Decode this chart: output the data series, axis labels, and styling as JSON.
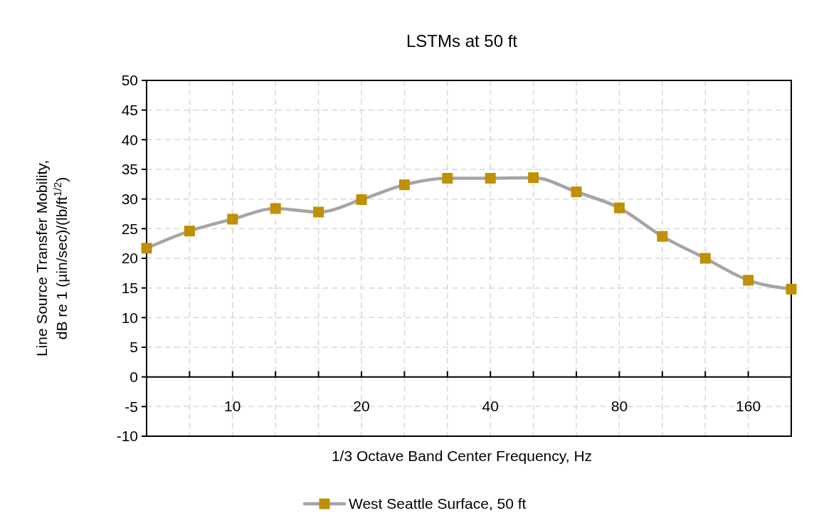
{
  "chart_data": {
    "type": "line",
    "title": "LSTMs at 50 ft",
    "xlabel": "1/3 Octave Band Center Frequency, Hz",
    "ylabel": "Line Source Transfer Mobility,\ndB re 1 (µin/sec)/(lb/ft$^{1/2}$)",
    "categories": [
      null,
      null,
      "10",
      null,
      null,
      "20",
      null,
      null,
      "40",
      null,
      null,
      "80",
      null,
      null,
      "160",
      null
    ],
    "series": [
      {
        "name": "West Seattle Surface, 50 ft",
        "color": "#a5a5a5",
        "colors": [
          "#bf9000",
          "#bf9000",
          "#bf9000",
          "#bf9000",
          "#bf9000",
          "#bf9000",
          "#bf9000",
          "#bf9000",
          "#bf9000",
          "#bf9000",
          "#bf9000",
          "#bf9000",
          "#bf9000",
          "#bf9000",
          "#bf9000",
          "#bf9000"
        ],
        "values": [
          21.7,
          24.6,
          26.6,
          28.4,
          27.8,
          29.9,
          32.4,
          33.5,
          33.5,
          33.6,
          31.2,
          28.5,
          23.7,
          20.0,
          16.3,
          14.8
        ]
      }
    ],
    "ylim": [
      -10,
      50
    ],
    "yticks": [
      -10,
      -5,
      0,
      5,
      10,
      15,
      20,
      25,
      30,
      35,
      40,
      45,
      50
    ],
    "grid": true,
    "legend": "bottom",
    "marker": "square",
    "line_style": "solid"
  }
}
